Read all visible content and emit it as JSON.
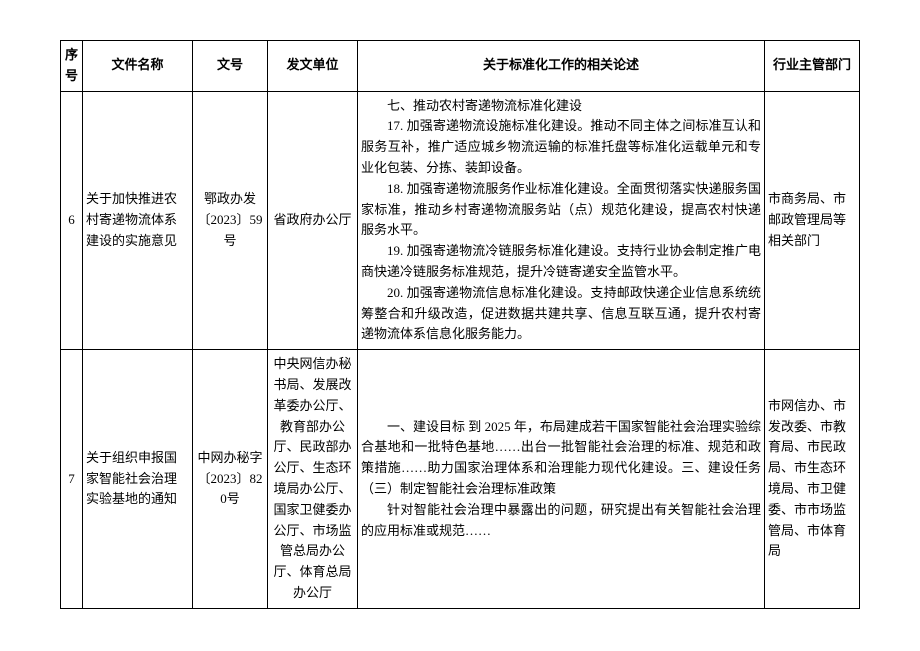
{
  "headers": {
    "seq": "序号",
    "name": "文件名称",
    "docno": "文号",
    "unit": "发文单位",
    "desc": "关于标准化工作的相关论述",
    "dept": "行业主管部门"
  },
  "rows": {
    "r6": {
      "seq": "6",
      "name": "关于加快推进农村寄递物流体系建设的实施意见",
      "docno": "鄂政办发〔2023〕59号",
      "unit": "省政府办公厅",
      "desc_title": "七、推动农村寄递物流标准化建设",
      "desc_p1": "17. 加强寄递物流设施标准化建设。推动不同主体之间标准互认和服务互补，推广适应城乡物流运输的标准托盘等标准化运载单元和专业化包装、分拣、装卸设备。",
      "desc_p2": "18. 加强寄递物流服务作业标准化建设。全面贯彻落实快递服务国家标准，推动乡村寄递物流服务站（点）规范化建设，提高农村快递服务水平。",
      "desc_p3": "19. 加强寄递物流冷链服务标准化建设。支持行业协会制定推广电商快递冷链服务标准规范，提升冷链寄递安全监管水平。",
      "desc_p4": "20. 加强寄递物流信息标准化建设。支持邮政快递企业信息系统统筹整合和升级改造，促进数据共建共享、信息互联互通，提升农村寄递物流体系信息化服务能力。",
      "dept": "市商务局、市邮政管理局等相关部门"
    },
    "r7": {
      "seq": "7",
      "name": "关于组织申报国家智能社会治理实验基地的通知",
      "docno": "中网办秘字〔2023〕820号",
      "unit": "中央网信办秘书局、发展改革委办公厅、教育部办公厅、民政部办公厅、生态环境局办公厅、国家卫健委办公厅、市场监管总局办公厅、体育总局办公厅",
      "desc_p1": "一、建设目标 到 2025 年，布局建成若干国家智能社会治理实验综合基地和一批特色基地……出台一批智能社会治理的标准、规范和政策措施……助力国家治理体系和治理能力现代化建设。三、建设任务（三）制定智能社会治理标准政策",
      "desc_p2": "针对智能社会治理中暴露出的问题，研究提出有关智能社会治理的应用标准或规范……",
      "dept": "市网信办、市发改委、市教育局、市民政局、市生态环境局、市卫健委、市市场监管局、市体育局"
    }
  }
}
